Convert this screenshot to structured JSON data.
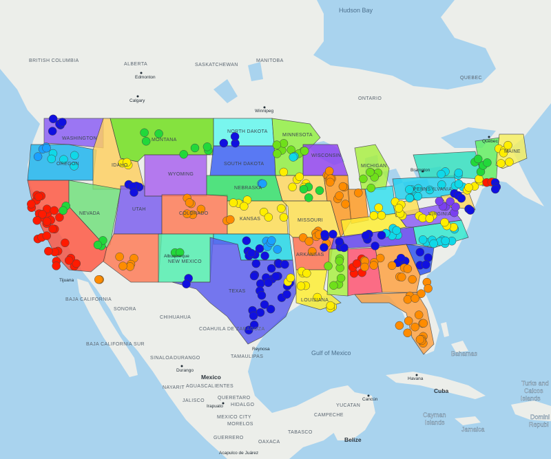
{
  "map": {
    "water_labels": {
      "hudson_bay": "Hudson Bay",
      "gulf_of_mexico": "Gulf of Mexico",
      "bahamas": "Bahamas"
    },
    "region_labels": {
      "british_columbia": "BRITISH COLUMBIA",
      "alberta": "ALBERTA",
      "saskatchewan": "SASKATCHEWAN",
      "manitoba": "MANITOBA",
      "ontario": "ONTARIO",
      "quebec": "QUEBEC",
      "baja_california": "BAJA CALIFORNIA",
      "baja_california_sur": "BAJA CALIFORNIA SUR",
      "sonora": "SONORA",
      "chihuahua": "CHIHUAHUA",
      "coahuila": "COAHUILA DE ZARAGOZA",
      "sinaloa": "SINALOA",
      "durango_state": "DURANGO",
      "tamaulipas": "TAMAULIPAS",
      "nayarit": "NAYARIT",
      "aguascalientes": "AGUASCALIENTES",
      "jalisco": "JALISCO",
      "hidalgo": "HIDALGO",
      "queretaro": "QUERETARO",
      "mexico_city": "MEXICO CITY",
      "morelos": "MORELOS",
      "guerrero": "GUERRERO",
      "oaxaca": "OAXACA",
      "tabasco": "TABASCO",
      "campeche": "CAMPECHE",
      "yucatan": "YUCATAN"
    },
    "country_labels": {
      "mexico": "Mexico",
      "cuba": "Cuba",
      "belize": "Belize"
    },
    "island_labels": {
      "turks_caicos": [
        "Turks and",
        "Caicos",
        "Islands"
      ],
      "cayman": [
        "Cayman",
        "Islands"
      ],
      "jamaica": "Jamaica",
      "dominican": [
        "Domini",
        "Republ"
      ]
    },
    "city_labels": {
      "edmonton": "Edmonton",
      "calgary": "Calgary",
      "winnipeg": "Winnipeg",
      "quebec_city": "Québec",
      "brampton": "Brampton",
      "tijuana": "Tijuana",
      "reynosa": "Reynosa",
      "durango": "Durango",
      "irapuato": "Irapuato",
      "acapulco": "Acapulco de Juárez",
      "havana": "Havana",
      "cancun": "Cancún",
      "albuquerque": "Albuquerque"
    },
    "state_labels": {
      "washington": "WASHINGTON",
      "oregon": "OREGON",
      "idaho": "IDAHO",
      "montana": "MONTANA",
      "wyoming": "WYOMING",
      "nevada": "NEVADA",
      "utah": "UTAH",
      "colorado": "COLORADO",
      "new_mexico": "NEW MEXICO",
      "texas": "TEXAS",
      "north_dakota": "NORTH DAKOTA",
      "south_dakota": "SOUTH DAKOTA",
      "nebraska": "NEBRASKA",
      "kansas": "KANSAS",
      "minnesota": "MINNESOTA",
      "wisconsin": "WISCONSIN",
      "michigan": "MICHIGAN",
      "missouri": "MISSOURI",
      "arkansas": "ARKANSAS",
      "louisiana": "LOUISIANA",
      "pennsylvania": "PENNSYLVANIA",
      "maine": "MAINE",
      "virginia": "VIRGINIA"
    },
    "colors": {
      "ocean": "#a9d3ee",
      "land": "#eceeea",
      "red": "#ff1a00",
      "orange": "#ff8c00",
      "yellow": "#ffee00",
      "lime": "#6fe01a",
      "green": "#22d83a",
      "cyan": "#10d8e8",
      "azure": "#1aa0ff",
      "blue": "#1010e0",
      "violet": "#7a40f0"
    }
  }
}
